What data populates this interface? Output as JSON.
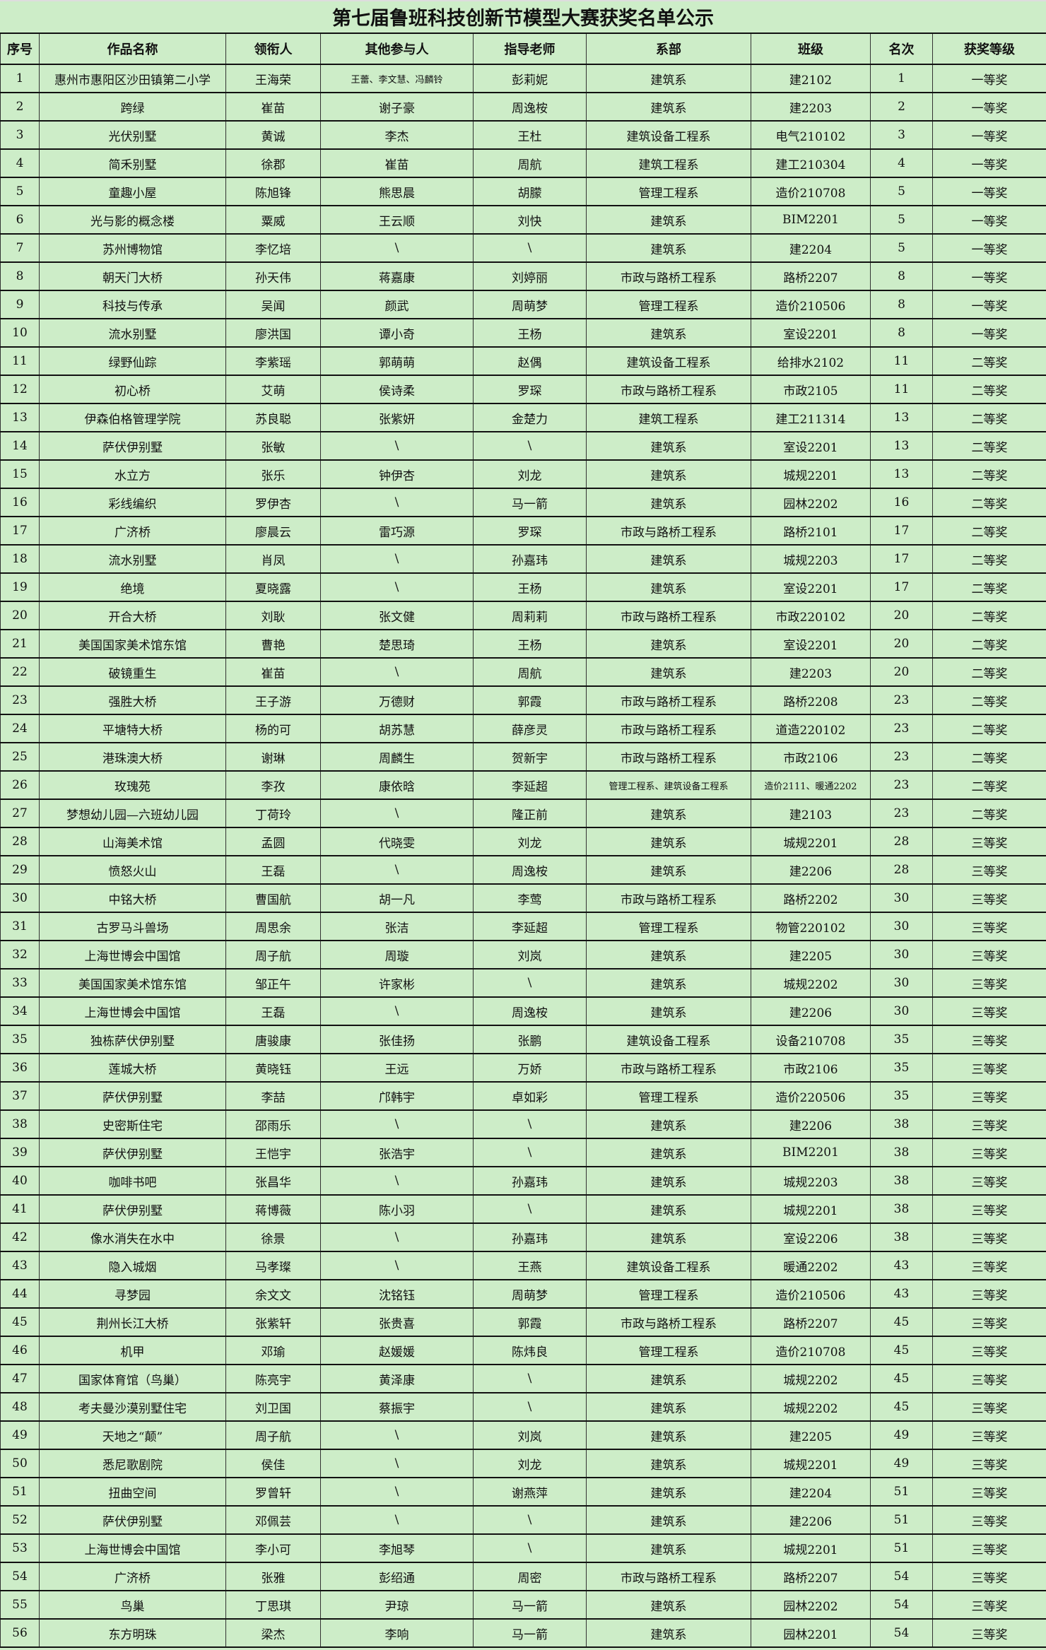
{
  "title": "第七届鲁班科技创新节模型大赛获奖名单公示",
  "colors": {
    "background": "#cdedc8",
    "border": "#111111"
  },
  "columns": [
    "序号",
    "作品名称",
    "领衔人",
    "其他参与人",
    "指导老师",
    "系部",
    "班级",
    "名次",
    "获奖等级"
  ],
  "rows": [
    [
      "1",
      "惠州市惠阳区沙田镇第二小学",
      "王海荣",
      "王蕾、李文慧、冯麟铃",
      "彭莉妮",
      "建筑系",
      "建2102",
      "1",
      "一等奖"
    ],
    [
      "2",
      "跨绿",
      "崔苗",
      "谢子豪",
      "周逸桉",
      "建筑系",
      "建2203",
      "2",
      "一等奖"
    ],
    [
      "3",
      "光伏别墅",
      "黄诚",
      "李杰",
      "王杜",
      "建筑设备工程系",
      "电气210102",
      "3",
      "一等奖"
    ],
    [
      "4",
      "简禾别墅",
      "徐郡",
      "崔苗",
      "周航",
      "建筑工程系",
      "建工210304",
      "4",
      "一等奖"
    ],
    [
      "5",
      "童趣小屋",
      "陈旭锋",
      "熊思晨",
      "胡朦",
      "管理工程系",
      "造价210708",
      "5",
      "一等奖"
    ],
    [
      "6",
      "光与影的概念楼",
      "粟威",
      "王云顺",
      "刘快",
      "建筑系",
      "BIM2201",
      "5",
      "一等奖"
    ],
    [
      "7",
      "苏州博物馆",
      "李忆培",
      "\\",
      "\\",
      "建筑系",
      "建2204",
      "5",
      "一等奖"
    ],
    [
      "8",
      "朝天门大桥",
      "孙天伟",
      "蒋嘉康",
      "刘婷丽",
      "市政与路桥工程系",
      "路桥2207",
      "8",
      "一等奖"
    ],
    [
      "9",
      "科技与传承",
      "吴闻",
      "颜武",
      "周萌梦",
      "管理工程系",
      "造价210506",
      "8",
      "一等奖"
    ],
    [
      "10",
      "流水别墅",
      "廖洪国",
      "谭小奇",
      "王杨",
      "建筑系",
      "室设2201",
      "8",
      "一等奖"
    ],
    [
      "11",
      "绿野仙踪",
      "李紫瑶",
      "郭萌萌",
      "赵偶",
      "建筑设备工程系",
      "给排水2102",
      "11",
      "二等奖"
    ],
    [
      "12",
      "初心桥",
      "艾萌",
      "侯诗柔",
      "罗琛",
      "市政与路桥工程系",
      "市政2105",
      "11",
      "二等奖"
    ],
    [
      "13",
      "伊森伯格管理学院",
      "苏良聪",
      "张紫妍",
      "金楚力",
      "建筑工程系",
      "建工211314",
      "13",
      "二等奖"
    ],
    [
      "14",
      "萨伏伊别墅",
      "张敏",
      "\\",
      "\\",
      "建筑系",
      "室设2201",
      "13",
      "二等奖"
    ],
    [
      "15",
      "水立方",
      "张乐",
      "钟伊杏",
      "刘龙",
      "建筑系",
      "城规2201",
      "13",
      "二等奖"
    ],
    [
      "16",
      "彩线编织",
      "罗伊杏",
      "\\",
      "马一箭",
      "建筑系",
      "园林2202",
      "16",
      "二等奖"
    ],
    [
      "17",
      "广济桥",
      "廖晨云",
      "雷巧源",
      "罗琛",
      "市政与路桥工程系",
      "路桥2101",
      "17",
      "二等奖"
    ],
    [
      "18",
      "流水别墅",
      "肖凤",
      "\\",
      "孙嘉玮",
      "建筑系",
      "城规2203",
      "17",
      "二等奖"
    ],
    [
      "19",
      "绝境",
      "夏晓露",
      "\\",
      "王杨",
      "建筑系",
      "室设2201",
      "17",
      "二等奖"
    ],
    [
      "20",
      "开合大桥",
      "刘耿",
      "张文健",
      "周莉莉",
      "市政与路桥工程系",
      "市政220102",
      "20",
      "二等奖"
    ],
    [
      "21",
      "美国国家美术馆东馆",
      "曹艳",
      "楚思琦",
      "王杨",
      "建筑系",
      "室设2201",
      "20",
      "二等奖"
    ],
    [
      "22",
      "破镜重生",
      "崔苗",
      "\\",
      "周航",
      "建筑系",
      "建2203",
      "20",
      "二等奖"
    ],
    [
      "23",
      "强胜大桥",
      "王子游",
      "万德财",
      "郭霞",
      "市政与路桥工程系",
      "路桥2208",
      "23",
      "二等奖"
    ],
    [
      "24",
      "平塘特大桥",
      "杨的可",
      "胡苏慧",
      "薛彦灵",
      "市政与路桥工程系",
      "道造220102",
      "23",
      "二等奖"
    ],
    [
      "25",
      "港珠澳大桥",
      "谢琳",
      "周麟生",
      "贺新宇",
      "市政与路桥工程系",
      "市政2106",
      "23",
      "二等奖"
    ],
    [
      "26",
      "玫瑰苑",
      "李孜",
      "康依晗",
      "李延超",
      "管理工程系、建筑设备工程系",
      "造价2111、暖通2202",
      "23",
      "二等奖"
    ],
    [
      "27",
      "梦想幼儿园—六班幼儿园",
      "丁荷玲",
      "\\",
      "隆正前",
      "建筑系",
      "建2103",
      "23",
      "二等奖"
    ],
    [
      "28",
      "山海美术馆",
      "孟圆",
      "代晓雯",
      "刘龙",
      "建筑系",
      "城规2201",
      "28",
      "三等奖"
    ],
    [
      "29",
      "愤怒火山",
      "王磊",
      "\\",
      "周逸桉",
      "建筑系",
      "建2206",
      "28",
      "三等奖"
    ],
    [
      "30",
      "中铭大桥",
      "曹国航",
      "胡一凡",
      "李莺",
      "市政与路桥工程系",
      "路桥2202",
      "30",
      "三等奖"
    ],
    [
      "31",
      "古罗马斗兽场",
      "周思余",
      "张洁",
      "李延超",
      "管理工程系",
      "物管220102",
      "30",
      "三等奖"
    ],
    [
      "32",
      "上海世博会中国馆",
      "周子航",
      "周璇",
      "刘岚",
      "建筑系",
      "建2205",
      "30",
      "三等奖"
    ],
    [
      "33",
      "美国国家美术馆东馆",
      "邹正午",
      "许家彬",
      "\\",
      "建筑系",
      "城规2202",
      "30",
      "三等奖"
    ],
    [
      "34",
      "上海世博会中国馆",
      "王磊",
      "\\",
      "周逸桉",
      "建筑系",
      "建2206",
      "30",
      "三等奖"
    ],
    [
      "35",
      "独栋萨伏伊别墅",
      "唐骏康",
      "张佳扬",
      "张鹏",
      "建筑设备工程系",
      "设备210708",
      "35",
      "三等奖"
    ],
    [
      "36",
      "莲城大桥",
      "黄晓钰",
      "王远",
      "万娇",
      "市政与路桥工程系",
      "市政2106",
      "35",
      "三等奖"
    ],
    [
      "37",
      "萨伏伊别墅",
      "李喆",
      "邝韩宇",
      "卓如彩",
      "管理工程系",
      "造价220506",
      "35",
      "三等奖"
    ],
    [
      "38",
      "史密斯住宅",
      "邵雨乐",
      "\\",
      "\\",
      "建筑系",
      "建2206",
      "38",
      "三等奖"
    ],
    [
      "39",
      "萨伏伊别墅",
      "王恺宇",
      "张浩宇",
      "\\",
      "建筑系",
      "BIM2201",
      "38",
      "三等奖"
    ],
    [
      "40",
      "咖啡书吧",
      "张昌华",
      "\\",
      "孙嘉玮",
      "建筑系",
      "城规2203",
      "38",
      "三等奖"
    ],
    [
      "41",
      "萨伏伊别墅",
      "蒋博薇",
      "陈小羽",
      "\\",
      "建筑系",
      "城规2201",
      "38",
      "三等奖"
    ],
    [
      "42",
      "像水消失在水中",
      "徐景",
      "\\",
      "孙嘉玮",
      "建筑系",
      "室设2206",
      "38",
      "三等奖"
    ],
    [
      "43",
      "隐入城烟",
      "马孝璨",
      "\\",
      "王燕",
      "建筑设备工程系",
      "暖通2202",
      "43",
      "三等奖"
    ],
    [
      "44",
      "寻梦园",
      "余文文",
      "沈铭钰",
      "周萌梦",
      "管理工程系",
      "造价210506",
      "43",
      "三等奖"
    ],
    [
      "45",
      "荆州长江大桥",
      "张紫轩",
      "张贵喜",
      "郭霞",
      "市政与路桥工程系",
      "路桥2207",
      "45",
      "三等奖"
    ],
    [
      "46",
      "机甲",
      "邓瑜",
      "赵媛媛",
      "陈炜良",
      "管理工程系",
      "造价210708",
      "45",
      "三等奖"
    ],
    [
      "47",
      "国家体育馆（鸟巢）",
      "陈亮宇",
      "黄泽康",
      "\\",
      "建筑系",
      "城规2202",
      "45",
      "三等奖"
    ],
    [
      "48",
      "考夫曼沙漠别墅住宅",
      "刘卫国",
      "蔡振宇",
      "\\",
      "建筑系",
      "城规2202",
      "45",
      "三等奖"
    ],
    [
      "49",
      "天地之“颠”",
      "周子航",
      "\\",
      "刘岚",
      "建筑系",
      "建2205",
      "49",
      "三等奖"
    ],
    [
      "50",
      "悉尼歌剧院",
      "侯佳",
      "\\",
      "刘龙",
      "建筑系",
      "城规2201",
      "49",
      "三等奖"
    ],
    [
      "51",
      "扭曲空间",
      "罗曾轩",
      "\\",
      "谢燕萍",
      "建筑系",
      "建2204",
      "51",
      "三等奖"
    ],
    [
      "52",
      "萨伏伊别墅",
      "邓佩芸",
      "\\",
      "\\",
      "建筑系",
      "建2206",
      "51",
      "三等奖"
    ],
    [
      "53",
      "上海世博会中国馆",
      "李小可",
      "李旭琴",
      "\\",
      "建筑系",
      "城规2201",
      "51",
      "三等奖"
    ],
    [
      "54",
      "广济桥",
      "张雅",
      "彭绍通",
      "周密",
      "市政与路桥工程系",
      "路桥2207",
      "54",
      "三等奖"
    ],
    [
      "55",
      "鸟巢",
      "丁思琪",
      "尹琼",
      "马一箭",
      "建筑系",
      "园林2202",
      "54",
      "三等奖"
    ],
    [
      "56",
      "东方明珠",
      "梁杰",
      "李响",
      "马一箭",
      "建筑系",
      "园林2201",
      "54",
      "三等奖"
    ]
  ]
}
